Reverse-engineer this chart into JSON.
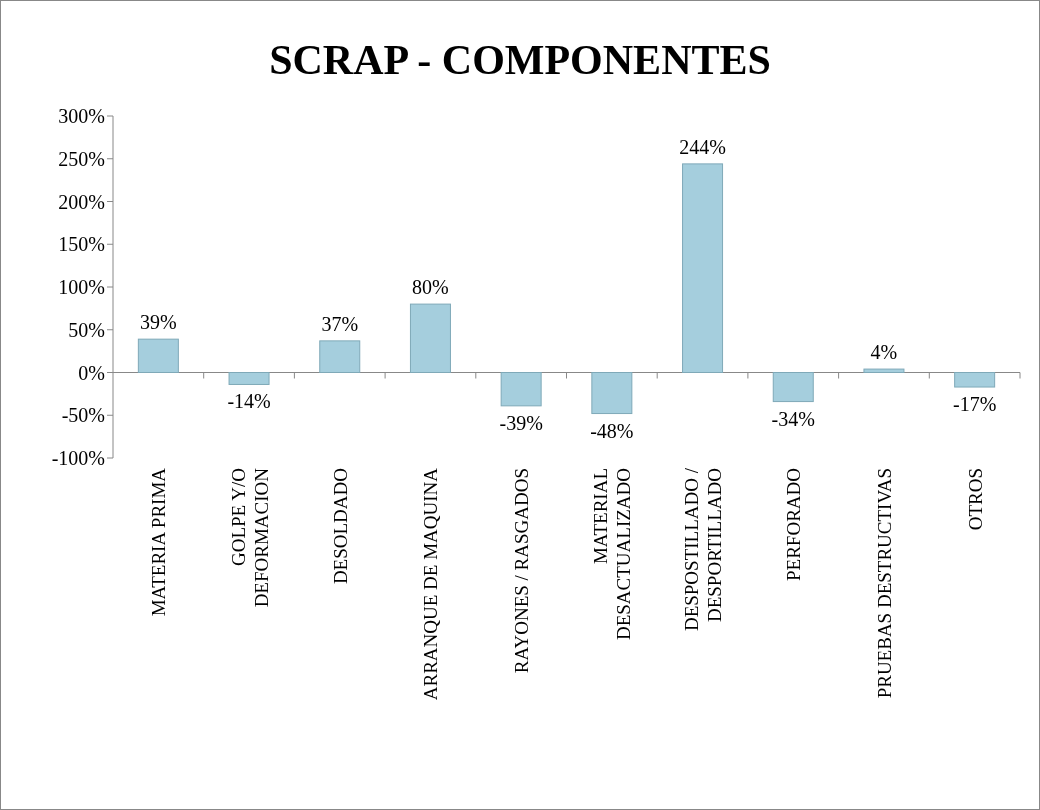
{
  "chart_data": {
    "type": "bar",
    "title": "SCRAP - COMPONENTES",
    "categories": [
      "MATERIA PRIMA",
      "GOLPE Y/O\nDEFORMACION",
      "DESOLDADO",
      "ARRANQUE DE MAQUINA",
      "RAYONES / RASGADOS",
      "MATERIAL\nDESACTUALIZADO",
      "DESPOSTILLADO /\nDESPORTILLADO",
      "PERFORADO",
      "PRUEBAS DESTRUCTIVAS",
      "OTROS"
    ],
    "values": [
      39,
      -14,
      37,
      80,
      -39,
      -48,
      244,
      -34,
      4,
      -17
    ],
    "value_labels": [
      "39%",
      "-14%",
      "37%",
      "80%",
      "-39%",
      "-48%",
      "244%",
      "-34%",
      "4%",
      "-17%"
    ],
    "color": "#a5cedd",
    "ylim": [
      -100,
      300
    ],
    "yticks": [
      {
        "value": -100,
        "label": "-100%"
      },
      {
        "value": -50,
        "label": "-50%"
      },
      {
        "value": 0,
        "label": "0%"
      },
      {
        "value": 50,
        "label": "50%"
      },
      {
        "value": 100,
        "label": "100%"
      },
      {
        "value": 150,
        "label": "150%"
      },
      {
        "value": 200,
        "label": "200%"
      },
      {
        "value": 250,
        "label": "250%"
      },
      {
        "value": 300,
        "label": "300%"
      }
    ]
  }
}
